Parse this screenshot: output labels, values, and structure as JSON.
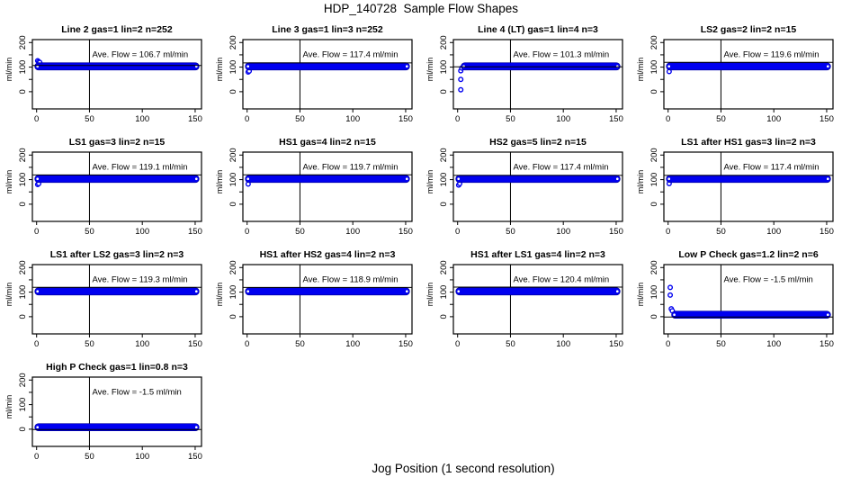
{
  "figure": {
    "title": "HDP_140728  Sample Flow Shapes",
    "xlabel": "Jog Position (1 second resolution)"
  },
  "chart_data": {
    "type": "scatter",
    "title": "HDP_140728  Sample Flow Shapes",
    "xlabel": "Jog Position (1 second resolution)",
    "ylabel": "ml/min",
    "layout": {
      "grid_rows": 4,
      "grid_cols": 4,
      "xlim": [
        -4,
        156
      ],
      "ylim": [
        -70,
        212
      ],
      "x_ticks": [
        0,
        50,
        100,
        150
      ],
      "y_ticks_major": [
        0,
        100,
        200
      ],
      "y_ticks_minor": [
        50,
        150
      ],
      "vline_x": 50,
      "grid": false,
      "legend": "none",
      "point_color": "#0000f0",
      "band_edge_color": "#0000a0",
      "axis_color": "#000000",
      "annotation_y": 140
    },
    "plots": [
      {
        "title": "Line 2 gas=1 lin=2 n=252",
        "ave_flow": 106.7,
        "ann": "Ave. Flow =  106.7  ml/min",
        "band": {
          "x0": 0,
          "x1": 152,
          "y": 103
        },
        "points": [
          [
            1,
            126
          ],
          [
            2,
            122
          ],
          [
            3,
            119
          ]
        ]
      },
      {
        "title": "Line 3 gas=1 lin=3 n=252",
        "ave_flow": 117.4,
        "ann": "Ave. Flow =  117.4  ml/min",
        "band": {
          "x0": 0,
          "x1": 152,
          "y": 103
        },
        "points": [
          [
            1,
            80
          ],
          [
            2,
            84
          ]
        ]
      },
      {
        "title": "Line 4 (LT) gas=1 lin=4 n=3",
        "ave_flow": 101.3,
        "ann": "Ave. Flow =  101.3  ml/min",
        "band": {
          "x0": 5,
          "x1": 152,
          "y": 103
        },
        "points": [
          [
            3,
            8
          ],
          [
            3,
            50
          ],
          [
            3,
            85
          ],
          [
            4,
            96
          ]
        ]
      },
      {
        "title": "LS2 gas=2 lin=2 n=15",
        "ave_flow": 119.6,
        "ann": "Ave. Flow =  119.6  ml/min",
        "band": {
          "x0": 0,
          "x1": 152,
          "y": 103
        },
        "points": [
          [
            1,
            82
          ]
        ]
      },
      {
        "title": "LS1 gas=3 lin=2 n=15",
        "ave_flow": 119.1,
        "ann": "Ave. Flow =  119.1  ml/min",
        "band": {
          "x0": 0,
          "x1": 152,
          "y": 103
        },
        "points": [
          [
            1,
            80
          ],
          [
            2,
            84
          ]
        ]
      },
      {
        "title": "HS1 gas=4 lin=2 n=15",
        "ave_flow": 119.7,
        "ann": "Ave. Flow =  119.7  ml/min",
        "band": {
          "x0": 0,
          "x1": 152,
          "y": 103
        },
        "points": [
          [
            1,
            82
          ]
        ]
      },
      {
        "title": "HS2 gas=5 lin=2 n=15",
        "ave_flow": 117.4,
        "ann": "Ave. Flow =  117.4  ml/min",
        "band": {
          "x0": 0,
          "x1": 152,
          "y": 103
        },
        "points": [
          [
            1,
            78
          ],
          [
            2,
            84
          ]
        ]
      },
      {
        "title": "LS1 after HS1 gas=3 lin=2 n=3",
        "ave_flow": 117.4,
        "ann": "Ave. Flow =  117.4  ml/min",
        "band": {
          "x0": 0,
          "x1": 152,
          "y": 103
        },
        "points": [
          [
            1,
            84
          ]
        ]
      },
      {
        "title": "LS1 after LS2 gas=3 lin=2 n=3",
        "ave_flow": 119.3,
        "ann": "Ave. Flow =  119.3  ml/min",
        "band": {
          "x0": 0,
          "x1": 152,
          "y": 103
        },
        "points": []
      },
      {
        "title": "HS1 after HS2 gas=4 lin=2 n=3",
        "ave_flow": 118.9,
        "ann": "Ave. Flow =  118.9  ml/min",
        "band": {
          "x0": 0,
          "x1": 152,
          "y": 103
        },
        "points": []
      },
      {
        "title": "HS1 after LS1 gas=4 lin=2 n=3",
        "ave_flow": 120.4,
        "ann": "Ave. Flow =  120.4  ml/min",
        "band": {
          "x0": 0,
          "x1": 152,
          "y": 103
        },
        "points": []
      },
      {
        "title": "Low P Check gas=1.2 lin=2 n=6",
        "ave_flow": -1.5,
        "ann": "Ave. Flow =  -1.5  ml/min",
        "band": {
          "x0": 5,
          "x1": 152,
          "y": 8
        },
        "points": [
          [
            2,
            119
          ],
          [
            2,
            88
          ],
          [
            3,
            32
          ],
          [
            4,
            24
          ]
        ]
      },
      {
        "title": "High P Check gas=1 lin=0.8 n=3",
        "ave_flow": -1.5,
        "ann": "Ave. Flow =  -1.5  ml/min",
        "band": {
          "x0": 0,
          "x1": 152,
          "y": 8
        },
        "points": []
      }
    ]
  }
}
